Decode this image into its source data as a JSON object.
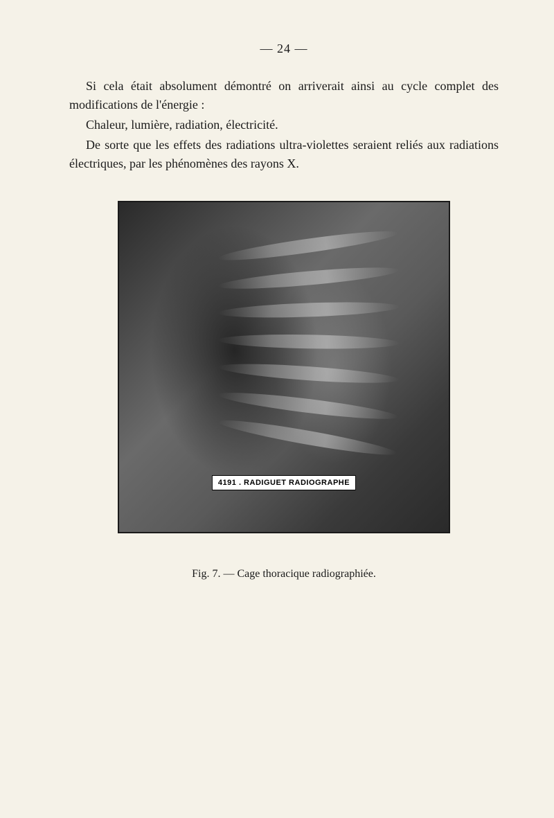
{
  "page_number": "— 24 —",
  "paragraphs": {
    "p1": "Si cela était absolument démontré on arriverait ainsi au cycle complet des modifications de l'énergie :",
    "p2": "Chaleur, lumière, radiation, électricité.",
    "p3": "De sorte que les effets des radiations ultra-violettes seraient reliés aux radiations électriques, par les phénomènes des rayons X."
  },
  "figure": {
    "label": "4191 . RADIGUET  RADIOGRAPHE",
    "caption": "Fig. 7. — Cage thoracique radiographiée."
  },
  "colors": {
    "page_background": "#f5f2e8",
    "text_color": "#1a1a1a",
    "image_border": "#1a1a1a",
    "label_background": "#ffffff",
    "label_text": "#000000"
  },
  "typography": {
    "body_fontsize": 18,
    "caption_fontsize": 16,
    "label_fontsize": 11,
    "font_family": "Georgia, Times New Roman, serif"
  }
}
